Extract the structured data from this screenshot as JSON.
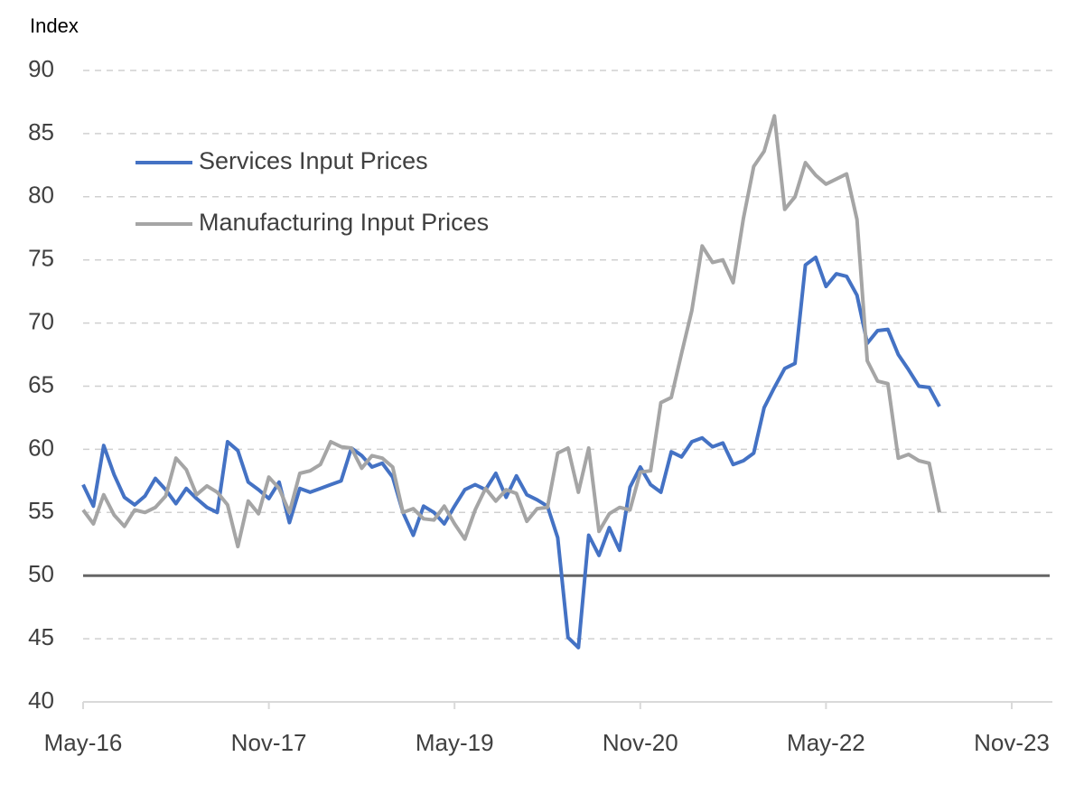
{
  "chart_data": {
    "type": "line",
    "y_label": "Index",
    "categories": [
      "May-16",
      null,
      null,
      null,
      null,
      null,
      null,
      null,
      null,
      null,
      null,
      null,
      null,
      null,
      null,
      null,
      null,
      null,
      "Nov-17",
      null,
      null,
      null,
      null,
      null,
      null,
      null,
      null,
      null,
      null,
      null,
      null,
      null,
      null,
      null,
      null,
      null,
      "May-19",
      null,
      null,
      null,
      null,
      null,
      null,
      null,
      null,
      null,
      null,
      null,
      null,
      null,
      null,
      null,
      null,
      null,
      "Nov-20",
      null,
      null,
      null,
      null,
      null,
      null,
      null,
      null,
      null,
      null,
      null,
      null,
      null,
      null,
      null,
      null,
      null,
      "May-22",
      null,
      null,
      null,
      null,
      null,
      null,
      null,
      null,
      null,
      null,
      null,
      null,
      null,
      null,
      null,
      null,
      null,
      "Nov-23"
    ],
    "series": [
      {
        "name": "Services Input Prices",
        "color": "#4472c4",
        "values": [
          57.2,
          55.5,
          60.3,
          58,
          56.2,
          55.6,
          56.3,
          57.7,
          56.8,
          55.7,
          56.9,
          56.1,
          55.4,
          55,
          60.6,
          59.9,
          57.4,
          56.8,
          56.1,
          57.4,
          54.2,
          56.9,
          56.6,
          56.9,
          57.2,
          57.5,
          60.1,
          59.5,
          58.6,
          58.9,
          57.8,
          55,
          53.2,
          55.5,
          55,
          54.1,
          55.5,
          56.8,
          57.2,
          56.8,
          58.1,
          56.2,
          57.9,
          56.4,
          56,
          55.5,
          53,
          45.1,
          44.3,
          53.2,
          51.6,
          53.8,
          52,
          57,
          58.6,
          57.2,
          56.6,
          59.8,
          59.4,
          60.6,
          60.9,
          60.2,
          60.5,
          58.8,
          59.1,
          59.7,
          63.3,
          64.9,
          66.4,
          66.8,
          74.6,
          75.2,
          72.9,
          73.9,
          73.7,
          72.2,
          68.4,
          69.4,
          69.5,
          67.5,
          66.3,
          65,
          64.9,
          63.4,
          null,
          null,
          null,
          null,
          null,
          null,
          null
        ]
      },
      {
        "name": "Manufacturing Input Prices",
        "color": "#a5a5a5",
        "values": [
          55.2,
          54.1,
          56.4,
          54.8,
          53.9,
          55.2,
          55,
          55.4,
          56.3,
          59.3,
          58.4,
          56.4,
          57.1,
          56.6,
          55.6,
          52.3,
          55.9,
          54.9,
          57.8,
          56.9,
          55,
          58.1,
          58.3,
          58.8,
          60.6,
          60.2,
          60.1,
          58.5,
          59.5,
          59.3,
          58.6,
          55,
          55.3,
          54.5,
          54.4,
          55.5,
          54.1,
          52.9,
          55.2,
          56.9,
          55.9,
          56.8,
          56.5,
          54.3,
          55.3,
          55.4,
          59.7,
          60.1,
          56.6,
          60.1,
          53.5,
          54.9,
          55.4,
          55.2,
          58.2,
          58.3,
          63.7,
          64.1,
          67.6,
          71,
          76.1,
          74.8,
          75,
          73.2,
          78.3,
          82.4,
          83.6,
          86.4,
          79,
          80,
          82.7,
          81.7,
          81,
          81.4,
          81.8,
          78.2,
          67,
          65.4,
          65.2,
          59.3,
          59.6,
          59.1,
          58.9,
          55,
          null,
          null,
          null,
          null,
          null,
          null,
          null
        ]
      }
    ],
    "ylim": [
      40,
      90
    ],
    "yticks": [
      40,
      45,
      50,
      55,
      60,
      65,
      70,
      75,
      80,
      85,
      90
    ],
    "grid": true,
    "reference_line": 50,
    "legend": "upper left"
  }
}
